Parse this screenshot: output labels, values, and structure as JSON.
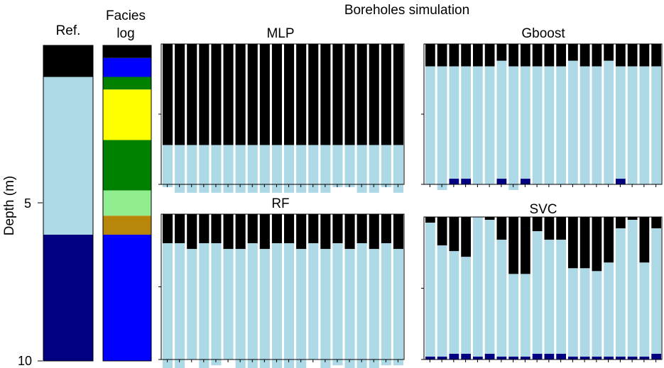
{
  "chart_data": {
    "type": "stacked-bar",
    "title": "Boreholes simulation",
    "ylabel": "Depth (m)",
    "ylim": [
      0,
      10
    ],
    "yticks": [
      "5",
      "10"
    ],
    "ytick_values": [
      5,
      10
    ],
    "colors": {
      "black": "#000000",
      "light_blue": "#add8e6",
      "navy": "#000080",
      "blue": "#0000ff",
      "green": "#008000",
      "yellow": "#ffff00",
      "light_green": "#90ee90",
      "brown": "#b8860b"
    },
    "reference": {
      "title": "Ref.",
      "layers": [
        {
          "color": "black",
          "top": 0,
          "bottom": 1.0
        },
        {
          "color": "light_blue",
          "top": 1.0,
          "bottom": 6.0
        },
        {
          "color": "navy",
          "top": 6.0,
          "bottom": 10.0
        }
      ]
    },
    "facies_log": {
      "title_line1": "Facies",
      "title_line2": "log",
      "layers": [
        {
          "color": "black",
          "top": 0,
          "bottom": 0.4
        },
        {
          "color": "blue",
          "top": 0.4,
          "bottom": 1.0
        },
        {
          "color": "green",
          "top": 1.0,
          "bottom": 1.4
        },
        {
          "color": "yellow",
          "top": 1.4,
          "bottom": 3.0
        },
        {
          "color": "green",
          "top": 3.0,
          "bottom": 4.6
        },
        {
          "color": "light_green",
          "top": 4.6,
          "bottom": 5.4
        },
        {
          "color": "brown",
          "top": 5.4,
          "bottom": 6.0
        },
        {
          "color": "blue",
          "top": 6.0,
          "bottom": 10.0
        }
      ]
    },
    "panels": [
      {
        "name": "MLP",
        "black_bottom": [
          3.6,
          3.6,
          3.6,
          3.6,
          3.6,
          3.6,
          3.6,
          3.6,
          3.6,
          3.6,
          3.6,
          3.6,
          3.6,
          3.6,
          3.6,
          3.6,
          3.6,
          3.6,
          3.6,
          3.6
        ],
        "light_blue_bottom": [
          5.1,
          5.3,
          5.3,
          5.3,
          5.3,
          5.3,
          5.3,
          5.3,
          5.3,
          5.3,
          5.3,
          5.3,
          5.3,
          5.3,
          5.1,
          5.1,
          5.3,
          5.3,
          5.1,
          5.3
        ]
      },
      {
        "name": "Gboost",
        "black_bottom": [
          0.8,
          0.8,
          0.8,
          0.8,
          0.8,
          0.8,
          0.6,
          0.8,
          0.8,
          0.8,
          0.8,
          0.8,
          0.6,
          0.8,
          0.8,
          0.6,
          0.8,
          0.8,
          0.8,
          0.8
        ],
        "light_blue_bottom": [
          5.0,
          5.2,
          4.8,
          4.8,
          5.0,
          5.0,
          4.8,
          5.2,
          4.8,
          5.0,
          5.0,
          5.0,
          5.0,
          5.0,
          5.0,
          5.0,
          4.8,
          5.0,
          5.0,
          5.0
        ]
      },
      {
        "name": "RF",
        "black_bottom": [
          1.0,
          1.0,
          1.2,
          1.0,
          1.0,
          1.2,
          1.2,
          1.0,
          1.2,
          1.0,
          1.0,
          1.2,
          1.0,
          1.2,
          1.0,
          1.2,
          1.0,
          1.2,
          1.0,
          1.2
        ],
        "light_blue_bottom": [
          5.4,
          5.4,
          5.0,
          5.4,
          5.2,
          5.0,
          5.4,
          5.4,
          5.4,
          5.4,
          5.4,
          5.4,
          5.0,
          5.4,
          5.2,
          5.4,
          5.4,
          5.4,
          5.2,
          5.2
        ]
      },
      {
        "name": "SVC",
        "black_bottom": [
          0.2,
          1.0,
          1.2,
          1.4,
          0.0,
          0.1,
          0.8,
          2.0,
          2.0,
          0.5,
          0.8,
          0.8,
          1.8,
          1.8,
          1.9,
          1.6,
          0.4,
          0.1,
          1.6,
          0.4
        ],
        "light_blue_bottom": [
          4.9,
          4.9,
          4.8,
          4.8,
          4.9,
          4.8,
          4.9,
          4.9,
          4.9,
          4.8,
          4.8,
          4.8,
          4.9,
          4.9,
          4.9,
          4.9,
          4.9,
          4.9,
          4.9,
          4.8
        ]
      }
    ]
  }
}
